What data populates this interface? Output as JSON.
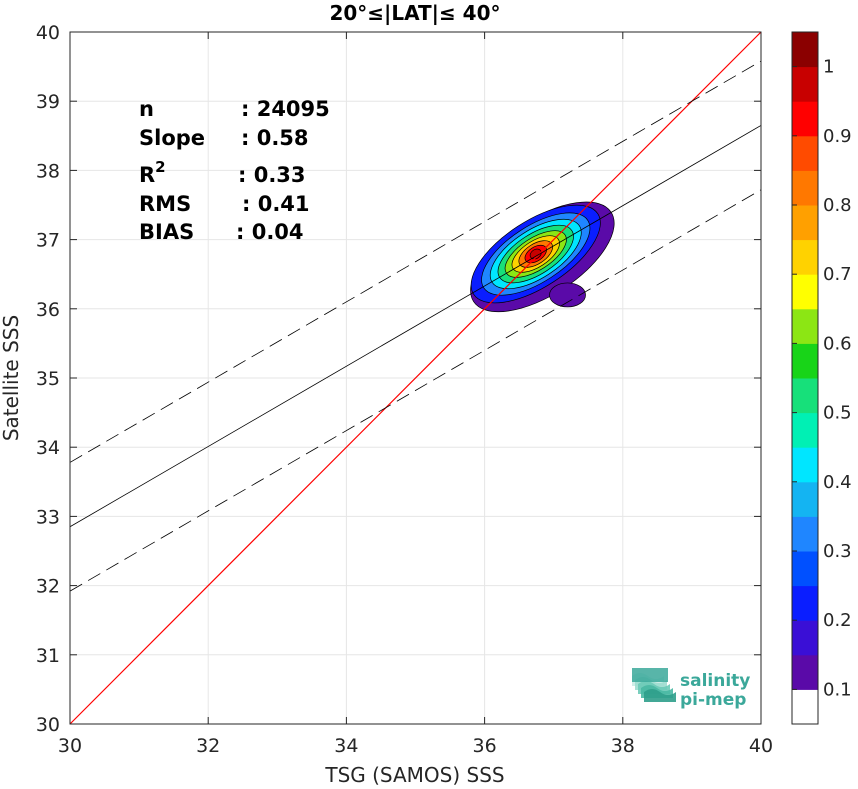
{
  "chart_data": {
    "type": "heatmap",
    "title": "20°≤|LAT|≤ 40°",
    "xlabel": "TSG (SAMOS) SSS",
    "ylabel": "Satellite SSS",
    "xlim": [
      30,
      40
    ],
    "ylim": [
      30,
      40
    ],
    "xticks": [
      "30",
      "32",
      "34",
      "36",
      "38",
      "40"
    ],
    "yticks": [
      "30",
      "31",
      "32",
      "33",
      "34",
      "35",
      "36",
      "37",
      "38",
      "39",
      "40"
    ],
    "grid": true,
    "stats": [
      {
        "label": "n",
        "value": ": 24095"
      },
      {
        "label": "Slope",
        "value": ": 0.58"
      },
      {
        "label": "R",
        "sup": "2",
        "value": ": 0.33"
      },
      {
        "label": "RMS",
        "value": ": 0.41"
      },
      {
        "label": "BIAS",
        "value": ": 0.04"
      }
    ],
    "identity_line": {
      "slope": 1,
      "intercept": 0,
      "color": "#ff0000"
    },
    "fit_line": {
      "x": [
        30,
        40
      ],
      "y": [
        32.85,
        38.65
      ],
      "color": "#000000"
    },
    "fit_band": {
      "offset": 0.93
    },
    "density_peak": {
      "x": 36.7,
      "y": 36.8
    },
    "colorbar": {
      "range": [
        0,
        1
      ],
      "ticks": [
        "0.1",
        "0.2",
        "0.3",
        "0.4",
        "0.5",
        "0.6",
        "0.7",
        "0.8",
        "0.9",
        "1"
      ],
      "colors": [
        "#ffffff",
        "#5a0aa8",
        "#3a0fd6",
        "#0a1eff",
        "#0050ff",
        "#1f86ff",
        "#14b4f2",
        "#00e6ff",
        "#00f0b4",
        "#17e07a",
        "#18d418",
        "#8ce614",
        "#ffff00",
        "#ffd200",
        "#ffa000",
        "#ff7800",
        "#ff4b00",
        "#ff0000",
        "#c80000",
        "#8b0000"
      ]
    }
  },
  "logo": {
    "line1": "salinity",
    "line2": "pi-mep"
  }
}
